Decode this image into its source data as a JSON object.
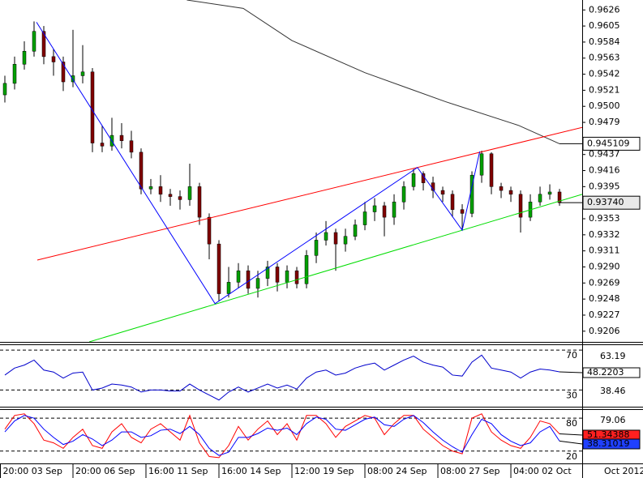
{
  "chart_data": [
    {
      "type": "candlestick",
      "xlim": [
        -0.5,
        59.33
      ],
      "ylim": [
        0.9192,
        0.9639
      ],
      "yticks": [
        0.9626,
        0.9605,
        0.9584,
        0.9563,
        0.9542,
        0.9521,
        {
          "value": 0.95,
          "label": "0.9500"
        },
        0.9479,
        0.9437,
        0.9416,
        0.9395,
        0.9353,
        0.9332,
        0.9311,
        {
          "value": 0.929,
          "label": "0.9290"
        },
        0.9269,
        0.9248,
        0.9227,
        0.9206
      ],
      "open": [
        0.9515,
        0.953,
        0.9555,
        0.9572,
        0.9598,
        0.9565,
        0.9558,
        0.9532,
        0.954,
        0.9545,
        0.9452,
        0.9448,
        0.9462,
        0.9455,
        0.944,
        0.9392,
        0.9395,
        0.9385,
        0.9382,
        0.9378,
        0.9395,
        0.9355,
        0.932,
        0.9255,
        0.927,
        0.9285,
        0.9262,
        0.9275,
        0.929,
        0.927,
        0.9285,
        0.9268,
        0.9305,
        0.9325,
        0.9335,
        0.932,
        0.933,
        0.9345,
        0.9362,
        0.937,
        0.9355,
        0.9375,
        0.9395,
        0.9412,
        0.94,
        0.939,
        0.9385,
        0.9365,
        0.936,
        0.941,
        0.9438,
        0.9395,
        0.939,
        0.9385,
        0.9355,
        0.9375,
        0.9385,
        0.9388
      ],
      "high": [
        0.954,
        0.9565,
        0.9585,
        0.9611,
        0.9605,
        0.9575,
        0.9565,
        0.96,
        0.958,
        0.955,
        0.9475,
        0.9485,
        0.9478,
        0.9468,
        0.9445,
        0.9405,
        0.941,
        0.9392,
        0.939,
        0.9425,
        0.94,
        0.936,
        0.9325,
        0.929,
        0.9295,
        0.9292,
        0.9285,
        0.9298,
        0.9295,
        0.9292,
        0.929,
        0.9312,
        0.9335,
        0.935,
        0.934,
        0.934,
        0.9352,
        0.9375,
        0.938,
        0.9375,
        0.9385,
        0.9402,
        0.9418,
        0.9415,
        0.9408,
        0.9395,
        0.939,
        0.9372,
        0.9415,
        0.9442,
        0.944,
        0.94,
        0.9395,
        0.939,
        0.9385,
        0.9395,
        0.9398,
        0.9392
      ],
      "low": [
        0.9505,
        0.9522,
        0.9548,
        0.9565,
        0.9555,
        0.954,
        0.952,
        0.9525,
        0.953,
        0.944,
        0.944,
        0.9442,
        0.9445,
        0.9432,
        0.9385,
        0.9385,
        0.9375,
        0.937,
        0.9365,
        0.937,
        0.9345,
        0.93,
        0.9245,
        0.925,
        0.9262,
        0.9255,
        0.925,
        0.9265,
        0.9258,
        0.9262,
        0.9262,
        0.9262,
        0.9295,
        0.9318,
        0.9285,
        0.931,
        0.9325,
        0.9338,
        0.935,
        0.933,
        0.9345,
        0.9365,
        0.939,
        0.939,
        0.938,
        0.9375,
        0.9355,
        0.9338,
        0.9355,
        0.94,
        0.9385,
        0.938,
        0.9375,
        0.9335,
        0.935,
        0.937,
        0.9378,
        0.937
      ],
      "close": [
        0.953,
        0.9555,
        0.9572,
        0.9598,
        0.9565,
        0.9558,
        0.9532,
        0.954,
        0.9545,
        0.9452,
        0.9448,
        0.9462,
        0.9455,
        0.944,
        0.9392,
        0.9395,
        0.9385,
        0.9382,
        0.9378,
        0.9395,
        0.9355,
        0.932,
        0.9255,
        0.927,
        0.9285,
        0.9262,
        0.9275,
        0.929,
        0.927,
        0.9285,
        0.9268,
        0.9305,
        0.9325,
        0.9335,
        0.932,
        0.933,
        0.9345,
        0.9362,
        0.937,
        0.9355,
        0.9375,
        0.9395,
        0.9412,
        0.94,
        0.939,
        0.9385,
        0.9365,
        0.936,
        0.941,
        0.9438,
        0.9395,
        0.939,
        0.9385,
        0.9355,
        0.9375,
        0.9385,
        0.9388,
        0.9374
      ],
      "up_color": "#00a000",
      "down_color": "#800000",
      "series": [
        {
          "color": "#333333",
          "x": [
            18.7,
            24.5,
            29.5,
            37,
            45.3,
            52.8,
            57
          ],
          "values": [
            0.9639,
            0.9628,
            0.9586,
            0.9544,
            0.9506,
            0.9475,
            0.945109
          ]
        },
        {
          "color": "#ff0000",
          "x": [
            3.33,
            59.5
          ],
          "values": [
            0.9299,
            0.9473
          ]
        },
        {
          "color": "#00dd00",
          "x": [
            8.67,
            59.33
          ],
          "values": [
            0.9192,
            0.9385
          ]
        },
        {
          "color": "#0000ff",
          "x": [
            3.25,
            21.6,
            42.4,
            47,
            48.8
          ],
          "values": [
            0.961,
            0.9242,
            0.942,
            0.9338,
            0.9441
          ]
        }
      ],
      "last_price": {
        "value": 0.9374,
        "label": "0.93740"
      }
    },
    {
      "type": "line",
      "xlim": [
        -0.5,
        59.33
      ],
      "ylim": [
        13.3,
        75.8
      ],
      "yticks": [
        70,
        30
      ],
      "extremes": [
        63.19,
        38.46
      ],
      "series": [
        {
          "color": "#0000cc",
          "values": [
            45,
            52,
            55,
            60,
            50,
            48,
            42,
            47,
            48,
            30,
            32,
            36,
            35,
            33,
            28,
            30,
            30,
            29,
            29,
            36,
            30,
            25,
            20,
            28,
            33,
            28,
            32,
            36,
            32,
            35,
            31,
            42,
            48,
            50,
            45,
            47,
            52,
            55,
            57,
            50,
            55,
            60,
            64,
            58,
            55,
            53,
            45,
            44,
            58,
            65,
            52,
            50,
            48,
            42,
            48,
            51,
            50,
            48.2203
          ]
        }
      ]
    },
    {
      "type": "line",
      "xlim": [
        -0.5,
        59.33
      ],
      "ylim": [
        -2.5,
        96.5
      ],
      "yticks": [
        80,
        20
      ],
      "extremes": [
        79.06
      ],
      "series": [
        {
          "color": "#ff0000",
          "values": [
            60,
            85,
            88,
            70,
            40,
            35,
            25,
            45,
            60,
            30,
            25,
            55,
            70,
            45,
            35,
            60,
            70,
            55,
            40,
            85,
            35,
            10,
            8,
            30,
            65,
            40,
            60,
            75,
            50,
            70,
            40,
            85,
            85,
            70,
            45,
            65,
            75,
            85,
            80,
            50,
            70,
            85,
            85,
            60,
            45,
            30,
            20,
            15,
            80,
            88,
            55,
            40,
            30,
            25,
            45,
            75,
            70,
            51.34388
          ]
        },
        {
          "color": "#0000ff",
          "values": [
            55,
            75,
            85,
            80,
            60,
            45,
            32,
            38,
            50,
            42,
            30,
            40,
            55,
            55,
            45,
            48,
            58,
            60,
            52,
            65,
            50,
            25,
            12,
            18,
            45,
            45,
            52,
            62,
            58,
            62,
            50,
            70,
            82,
            78,
            60,
            58,
            68,
            78,
            82,
            68,
            65,
            78,
            85,
            72,
            55,
            40,
            28,
            18,
            50,
            78,
            70,
            50,
            38,
            30,
            35,
            55,
            65,
            38.31019
          ]
        }
      ],
      "xticks": [
        {
          "value": -0.5,
          "label": "20:00 03 Sep"
        },
        {
          "value": 7,
          "label": "20:00 06 Sep"
        },
        {
          "value": 14.5,
          "label": "16:00 11 Sep"
        },
        {
          "value": 22,
          "label": "16:00 14 Sep"
        },
        {
          "value": 29.5,
          "label": "12:00 19 Sep"
        },
        {
          "value": 37,
          "label": "08:00 24 Sep"
        },
        {
          "value": 44.5,
          "label": "08:00 27 Sep"
        },
        {
          "value": 52,
          "label": "04:00 02 Oct"
        }
      ],
      "period_label": "Oct 2012"
    }
  ]
}
